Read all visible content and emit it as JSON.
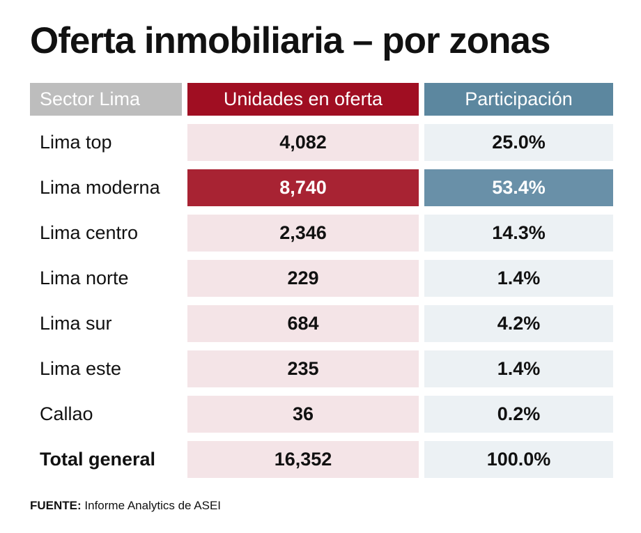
{
  "title": "Oferta inmobiliaria – por zonas",
  "chart_data": {
    "type": "table",
    "columns": [
      "Sector Lima",
      "Unidades en oferta",
      "Participación"
    ],
    "rows": [
      [
        "Lima top",
        "4,082",
        "25.0%"
      ],
      [
        "Lima moderna",
        "8,740",
        "53.4%"
      ],
      [
        "Lima centro",
        "2,346",
        "14.3%"
      ],
      [
        "Lima norte",
        "229",
        "1.4%"
      ],
      [
        "Lima sur",
        "684",
        "4.2%"
      ],
      [
        "Lima este",
        "235",
        "1.4%"
      ],
      [
        "Callao",
        "36",
        "0.2%"
      ],
      [
        "Total general",
        "16,352",
        "100.0%"
      ]
    ],
    "highlighted_row": "Lima moderna",
    "colors": {
      "units_header": "#a00e22",
      "share_header": "#5c879f",
      "sector_header": "#bdbdbd",
      "units_highlight": "#a82333",
      "share_highlight": "#6990a8"
    }
  },
  "source": {
    "label": "FUENTE:",
    "text": "Informe Analytics de ASEI"
  }
}
